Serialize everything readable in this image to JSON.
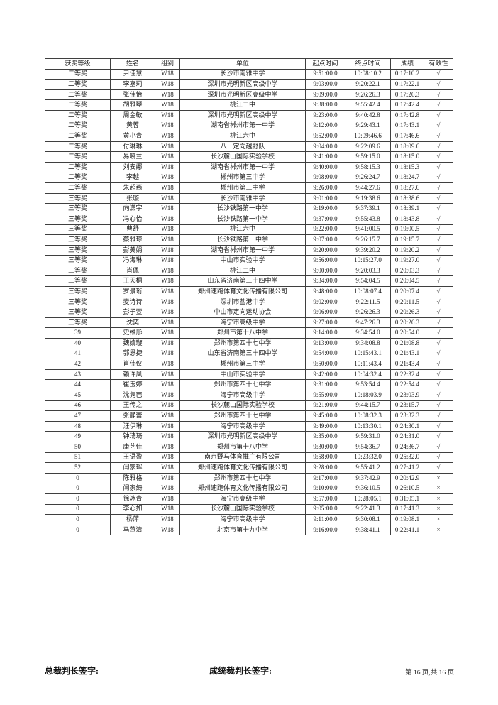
{
  "colors": {
    "background": "#ffffff",
    "border": "#3f3f3f",
    "text": "#1c1c1c"
  },
  "footer": {
    "chief_judge_label": "总裁判长签字:",
    "results_judge_label": "成统裁判长签字:",
    "page_indicator": "第 16 页,共 16 页"
  },
  "table": {
    "columns": [
      "获奖等级",
      "姓名",
      "组别",
      "单位",
      "起点时间",
      "终点时间",
      "成绩",
      "有效性"
    ],
    "rows": [
      [
        "二等奖",
        "尹佳慧",
        "W18",
        "长沙市南雅中学",
        "9:51:00.0",
        "10:08:10.2",
        "0:17:10.2",
        "√"
      ],
      [
        "二等奖",
        "李嘉莉",
        "W18",
        "深圳市光明新区高级中学",
        "9:03:00.0",
        "9:20:22.1",
        "0:17:22.1",
        "√"
      ],
      [
        "二等奖",
        "张佳怡",
        "W18",
        "深圳市光明新区高级中学",
        "9:09:00.0",
        "9:26:26.3",
        "0:17:26.3",
        "√"
      ],
      [
        "二等奖",
        "胡雅琴",
        "W18",
        "桃江二中",
        "9:38:00.0",
        "9:55:42.4",
        "0:17:42.4",
        "√"
      ],
      [
        "二等奖",
        "周金敏",
        "W18",
        "深圳市光明新区高级中学",
        "9:23:00.0",
        "9:40:42.8",
        "0:17:42.8",
        "√"
      ],
      [
        "二等奖",
        "黄蓉",
        "W18",
        "湖南省郴州市第一中学",
        "9:12:00.0",
        "9:29:43.1",
        "0:17:43.1",
        "√"
      ],
      [
        "二等奖",
        "黄小青",
        "W18",
        "桃江六中",
        "9:52:00.0",
        "10:09:46.6",
        "0:17:46.6",
        "√"
      ],
      [
        "二等奖",
        "付琳琳",
        "W18",
        "八一定向越野队",
        "9:04:00.0",
        "9:22:09.6",
        "0:18:09.6",
        "√"
      ],
      [
        "二等奖",
        "易晓兰",
        "W18",
        "长沙麓山国际实验学校",
        "9:41:00.0",
        "9:59:15.0",
        "0:18:15.0",
        "√"
      ],
      [
        "二等奖",
        "刘安娜",
        "W18",
        "湖南省郴州市第一中学",
        "9:40:00.0",
        "9:58:15.3",
        "0:18:15.3",
        "√"
      ],
      [
        "二等奖",
        "李越",
        "W18",
        "郴州市第三中学",
        "9:08:00.0",
        "9:26:24.7",
        "0:18:24.7",
        "√"
      ],
      [
        "二等奖",
        "朱超燕",
        "W18",
        "郴州市第三中学",
        "9:26:00.0",
        "9:44:27.6",
        "0:18:27.6",
        "√"
      ],
      [
        "三等奖",
        "张璇",
        "W18",
        "长沙市南雅中学",
        "9:01:00.0",
        "9:19:38.6",
        "0:18:38.6",
        "√"
      ],
      [
        "三等奖",
        "向潇宇",
        "W18",
        "长沙铁路第一中学",
        "9:19:00.0",
        "9:37:39.1",
        "0:18:39.1",
        "√"
      ],
      [
        "三等奖",
        "冯心怡",
        "W18",
        "长沙铁路第一中学",
        "9:37:00.0",
        "9:55:43.8",
        "0:18:43.8",
        "√"
      ],
      [
        "三等奖",
        "曹舒",
        "W18",
        "桃江六中",
        "9:22:00.0",
        "9:41:00.5",
        "0:19:00.5",
        "√"
      ],
      [
        "三等奖",
        "蔡雅琼",
        "W18",
        "长沙铁路第一中学",
        "9:07:00.0",
        "9:26:15.7",
        "0:19:15.7",
        "√"
      ],
      [
        "三等奖",
        "彭美娟",
        "W18",
        "湖南省郴州市第一中学",
        "9:20:00.0",
        "9:39:20.2",
        "0:19:20.2",
        "√"
      ],
      [
        "三等奖",
        "冯海琳",
        "W18",
        "中山市实验中学",
        "9:56:00.0",
        "10:15:27.0",
        "0:19:27.0",
        "√"
      ],
      [
        "三等奖",
        "肖佩",
        "W18",
        "桃江二中",
        "9:00:00.0",
        "9:20:03.3",
        "0:20:03.3",
        "√"
      ],
      [
        "三等奖",
        "王天桐",
        "W18",
        "山东省济南第三十四中学",
        "9:34:00.0",
        "9:54:04.5",
        "0:20:04.5",
        "√"
      ],
      [
        "三等奖",
        "罗景珩",
        "W18",
        "郑州速跑体育文化传播有限公司",
        "9:48:00.0",
        "10:08:07.4",
        "0:20:07.4",
        "√"
      ],
      [
        "三等奖",
        "麦诗诗",
        "W18",
        "深圳市盐港中学",
        "9:02:00.0",
        "9:22:11.5",
        "0:20:11.5",
        "√"
      ],
      [
        "三等奖",
        "彭子萱",
        "W18",
        "中山市定向运动协会",
        "9:06:00.0",
        "9:26:26.3",
        "0:20:26.3",
        "√"
      ],
      [
        "三等奖",
        "沈奕",
        "W18",
        "海宁市高级中学",
        "9:27:00.0",
        "9:47:26.3",
        "0:20:26.3",
        "√"
      ],
      [
        "39",
        "史维彤",
        "W18",
        "郑州市第十八中学",
        "9:14:00.0",
        "9:34:54.0",
        "0:20:54.0",
        "√"
      ],
      [
        "40",
        "魏婧璇",
        "W18",
        "郑州市第四十七中学",
        "9:13:00.0",
        "9:34:08.8",
        "0:21:08.8",
        "√"
      ],
      [
        "41",
        "郭恩捷",
        "W18",
        "山东省济南第三十四中学",
        "9:54:00.0",
        "10:15:43.1",
        "0:21:43.1",
        "√"
      ],
      [
        "42",
        "肖佳仪",
        "W18",
        "郴州市第三中学",
        "9:50:00.0",
        "10:11:43.4",
        "0:21:43.4",
        "√"
      ],
      [
        "43",
        "赖许凤",
        "W18",
        "中山市实验中学",
        "9:42:00.0",
        "10:04:32.4",
        "0:22:32.4",
        "√"
      ],
      [
        "44",
        "崔玉婷",
        "W18",
        "郑州市第四十七中学",
        "9:31:00.0",
        "9:53:54.4",
        "0:22:54.4",
        "√"
      ],
      [
        "45",
        "沈隽芭",
        "W18",
        "海宁市高级中学",
        "9:55:00.0",
        "10:18:03.9",
        "0:23:03.9",
        "√"
      ],
      [
        "46",
        "王传之",
        "W18",
        "长沙麓山国际实验学校",
        "9:21:00.0",
        "9:44:15.7",
        "0:23:15.7",
        "√"
      ],
      [
        "47",
        "张静蕾",
        "W18",
        "郑州市第四十七中学",
        "9:45:00.0",
        "10:08:32.3",
        "0:23:32.3",
        "√"
      ],
      [
        "48",
        "汪伊琳",
        "W18",
        "海宁市高级中学",
        "9:49:00.0",
        "10:13:30.1",
        "0:24:30.1",
        "√"
      ],
      [
        "49",
        "钟琦琦",
        "W18",
        "深圳市光明新区高级中学",
        "9:35:00.0",
        "9:59:31.0",
        "0:24:31.0",
        "√"
      ],
      [
        "50",
        "康艺佳",
        "W18",
        "郑州市第十八中学",
        "9:30:00.0",
        "9:54:36.7",
        "0:24:36.7",
        "√"
      ],
      [
        "51",
        "王语盈",
        "W18",
        "南京野马体育推广有限公司",
        "9:58:00.0",
        "10:23:32.0",
        "0:25:32.0",
        "√"
      ],
      [
        "52",
        "闫家珲",
        "W18",
        "郑州速跑体育文化传播有限公司",
        "9:28:00.0",
        "9:55:41.2",
        "0:27:41.2",
        "√"
      ],
      [
        "0",
        "陈雅格",
        "W18",
        "郑州市第四十七中学",
        "9:17:00.0",
        "9:37:42.9",
        "0:20:42.9",
        "×"
      ],
      [
        "0",
        "闫家绮",
        "W18",
        "郑州速跑体育文化传播有限公司",
        "9:10:00.0",
        "9:36:10.5",
        "0:26:10.5",
        "×"
      ],
      [
        "0",
        "徐冰青",
        "W18",
        "海宁市高级中学",
        "9:57:00.0",
        "10:28:05.1",
        "0:31:05.1",
        "×"
      ],
      [
        "0",
        "李心如",
        "W18",
        "长沙麓山国际实验学校",
        "9:05:00.0",
        "9:22:41.3",
        "0:17:41.3",
        "×"
      ],
      [
        "0",
        "杨萍",
        "W18",
        "海宁市高级中学",
        "9:11:00.0",
        "9:30:08.1",
        "0:19:08.1",
        "×"
      ],
      [
        "0",
        "马燕清",
        "W18",
        "北京市第十九中学",
        "9:16:00.0",
        "9:38:41.1",
        "0:22:41.1",
        "×"
      ]
    ]
  }
}
